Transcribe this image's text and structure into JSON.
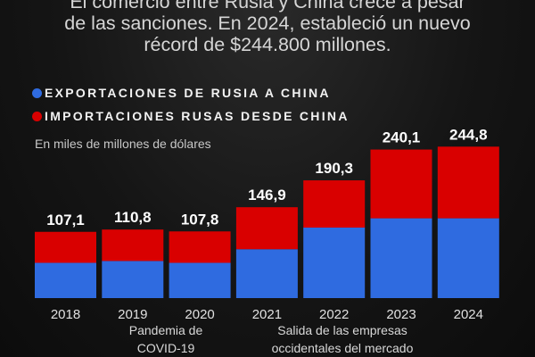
{
  "chart_data": {
    "type": "bar",
    "stacked": true,
    "title": "El comercio entre Rusia y China crece a pesar de las sanciones. En 2024, estableció un nuevo récord de $244.800 millones.",
    "title_lines": [
      "El comercio entre Rusia y China crece a pesar",
      "de las sanciones. En 2024, estableció un nuevo",
      "récord de $244.800 millones."
    ],
    "ylabel": "En miles de millones de dólares",
    "categories": [
      "2018",
      "2019",
      "2020",
      "2021",
      "2022",
      "2023",
      "2024"
    ],
    "totals": [
      107.1,
      110.8,
      107.8,
      146.9,
      190.3,
      240.1,
      244.8
    ],
    "total_labels": [
      "107,1",
      "110,8",
      "107,8",
      "146,9",
      "190,3",
      "240,1",
      "244,8"
    ],
    "series": [
      {
        "name": "EXPORTACIONES DE RUSIA A CHINA",
        "color": "#2f6be0",
        "values": [
          57,
          60,
          57,
          79,
          114,
          129,
          129
        ]
      },
      {
        "name": "IMPORTACIONES RUSAS DESDE CHINA",
        "color": "#d90000",
        "values": [
          50.1,
          50.8,
          50.8,
          67.9,
          76.3,
          111.1,
          115.8
        ]
      }
    ],
    "ylim": [
      0,
      245
    ],
    "grid": false,
    "legend": "top-left",
    "annotations": [
      {
        "text_lines": [
          "Pandemia de",
          "COVID-19"
        ],
        "under": [
          "2019",
          "2020"
        ]
      },
      {
        "text_lines": [
          "Salida de las empresas",
          "occidentales del mercado"
        ],
        "under": [
          "2021",
          "2022",
          "2023"
        ]
      }
    ]
  }
}
